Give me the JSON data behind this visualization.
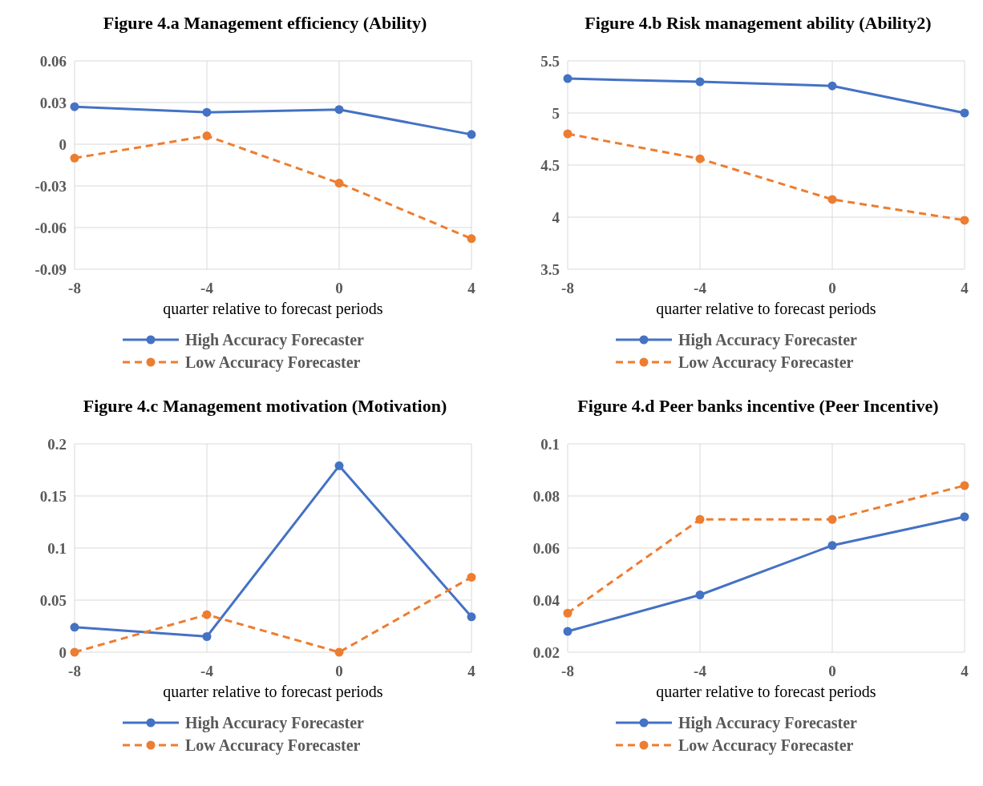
{
  "chart_data": [
    {
      "type": "line",
      "title": "Figure 4.a Management efficiency (Ability)",
      "xlabel": "quarter relative to forecast periods",
      "x": [
        -8,
        -4,
        0,
        4
      ],
      "xlim": [
        -8,
        4
      ],
      "xticks": [
        -8,
        -4,
        0,
        4
      ],
      "ylim": [
        -0.09,
        0.06
      ],
      "yticks": [
        -0.09,
        -0.06,
        -0.03,
        0,
        0.03,
        0.06
      ],
      "grid": true,
      "legend": "bottom",
      "marker": "circle",
      "series": [
        {
          "name": "High Accuracy Forecaster",
          "color": "#4472c4",
          "line_style": "solid",
          "values": [
            0.027,
            0.023,
            0.025,
            0.007
          ]
        },
        {
          "name": "Low Accuracy Forecaster",
          "color": "#ed7d31",
          "line_style": "dashed",
          "values": [
            -0.01,
            0.006,
            -0.028,
            -0.068
          ]
        }
      ]
    },
    {
      "type": "line",
      "title": "Figure 4.b Risk management ability (Ability2)",
      "xlabel": "quarter relative to forecast periods",
      "x": [
        -8,
        -4,
        0,
        4
      ],
      "xlim": [
        -8,
        4
      ],
      "xticks": [
        -8,
        -4,
        0,
        4
      ],
      "ylim": [
        3.5,
        5.5
      ],
      "yticks": [
        3.5,
        4,
        4.5,
        5,
        5.5
      ],
      "grid": true,
      "legend": "bottom",
      "marker": "circle",
      "series": [
        {
          "name": "High Accuracy Forecaster",
          "color": "#4472c4",
          "line_style": "solid",
          "values": [
            5.33,
            5.3,
            5.26,
            5.0
          ]
        },
        {
          "name": "Low Accuracy Forecaster",
          "color": "#ed7d31",
          "line_style": "dashed",
          "values": [
            4.8,
            4.56,
            4.17,
            3.97
          ]
        }
      ]
    },
    {
      "type": "line",
      "title": "Figure 4.c Management motivation (Motivation)",
      "xlabel": "quarter relative to forecast periods",
      "x": [
        -8,
        -4,
        0,
        4
      ],
      "xlim": [
        -8,
        4
      ],
      "xticks": [
        -8,
        -4,
        0,
        4
      ],
      "ylim": [
        0,
        0.2
      ],
      "yticks": [
        0,
        0.05,
        0.1,
        0.15,
        0.2
      ],
      "grid": true,
      "legend": "bottom",
      "marker": "circle",
      "series": [
        {
          "name": "High Accuracy Forecaster",
          "color": "#4472c4",
          "line_style": "solid",
          "values": [
            0.024,
            0.015,
            0.179,
            0.034
          ]
        },
        {
          "name": "Low Accuracy Forecaster",
          "color": "#ed7d31",
          "line_style": "dashed",
          "values": [
            0,
            0.036,
            0,
            0.072
          ]
        }
      ]
    },
    {
      "type": "line",
      "title": "Figure 4.d Peer banks incentive (Peer Incentive)",
      "xlabel": "quarter relative to forecast periods",
      "x": [
        -8,
        -4,
        0,
        4
      ],
      "xlim": [
        -8,
        4
      ],
      "xticks": [
        -8,
        -4,
        0,
        4
      ],
      "ylim": [
        0.02,
        0.1
      ],
      "yticks": [
        0.02,
        0.04,
        0.06,
        0.08,
        0.1
      ],
      "grid": true,
      "legend": "bottom",
      "marker": "circle",
      "series": [
        {
          "name": "High Accuracy Forecaster",
          "color": "#4472c4",
          "line_style": "solid",
          "values": [
            0.028,
            0.042,
            0.061,
            0.072
          ]
        },
        {
          "name": "Low Accuracy Forecaster",
          "color": "#ed7d31",
          "line_style": "dashed",
          "values": [
            0.035,
            0.071,
            0.071,
            0.084
          ]
        }
      ]
    }
  ]
}
